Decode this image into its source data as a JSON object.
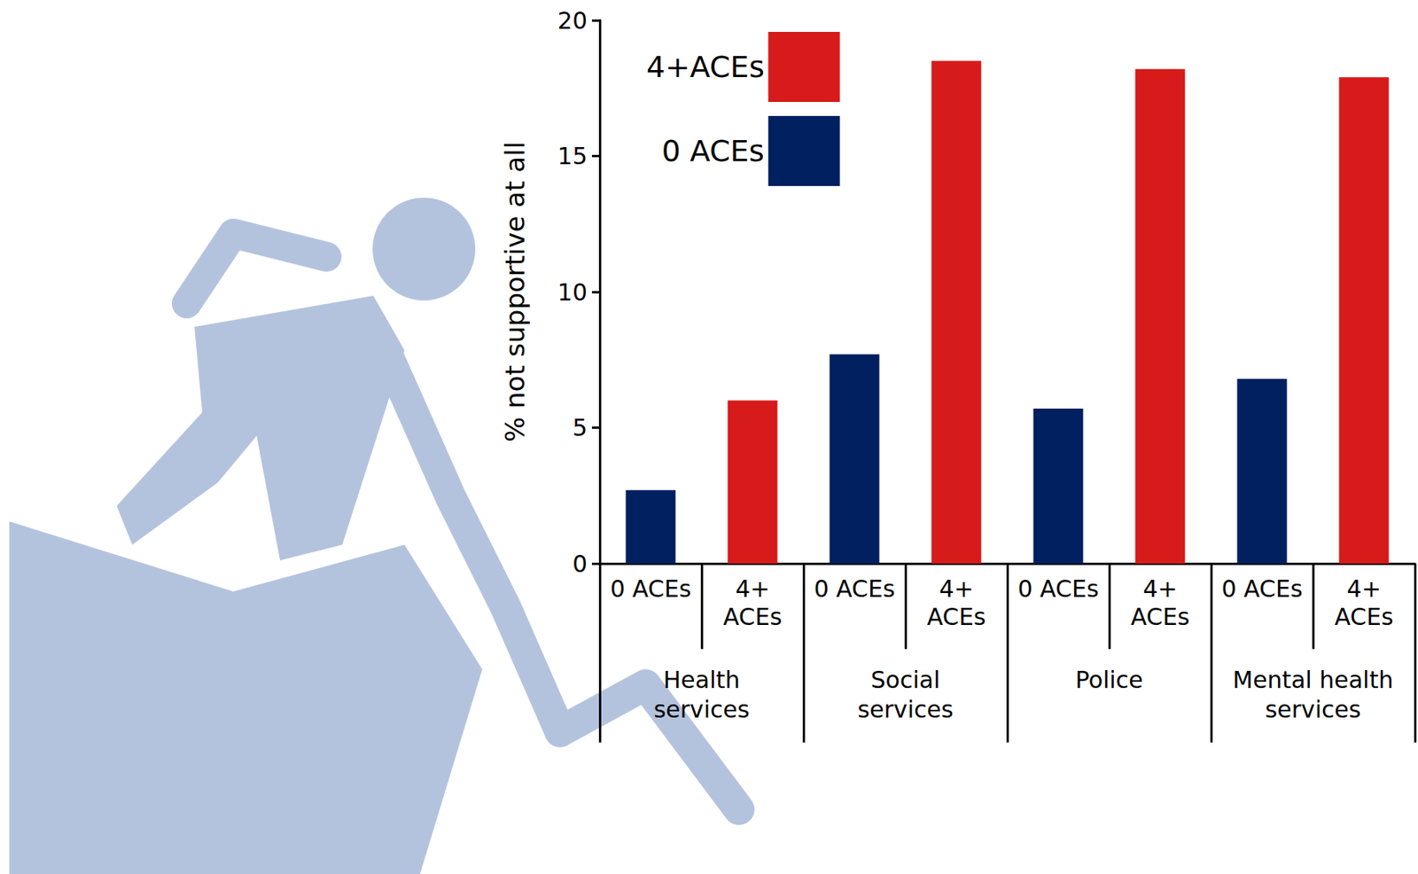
{
  "chart_data": {
    "type": "bar",
    "y_label": "% not supportive at all",
    "categories": [
      "0 ACEs",
      "4+ ACEs",
      "0 ACEs",
      "4+ ACEs",
      "0 ACEs",
      "4+ ACEs",
      "0 ACEs",
      "4+ ACEs"
    ],
    "group_labels": [
      "Health services",
      "Social services",
      "Police",
      "Mental health services"
    ],
    "series": [
      {
        "name": "4+ACEs",
        "color": "#d71a1a",
        "values": [
          null,
          6.0,
          null,
          18.5,
          null,
          18.2,
          null,
          17.9
        ]
      },
      {
        "name": "0 ACEs",
        "color": "#002060",
        "values": [
          2.7,
          null,
          7.7,
          null,
          5.7,
          null,
          6.8,
          null
        ]
      }
    ],
    "ylim": [
      0,
      20
    ],
    "yticks": [
      0,
      5,
      10,
      15,
      20
    ],
    "legend": "upper left",
    "grid": false
  }
}
